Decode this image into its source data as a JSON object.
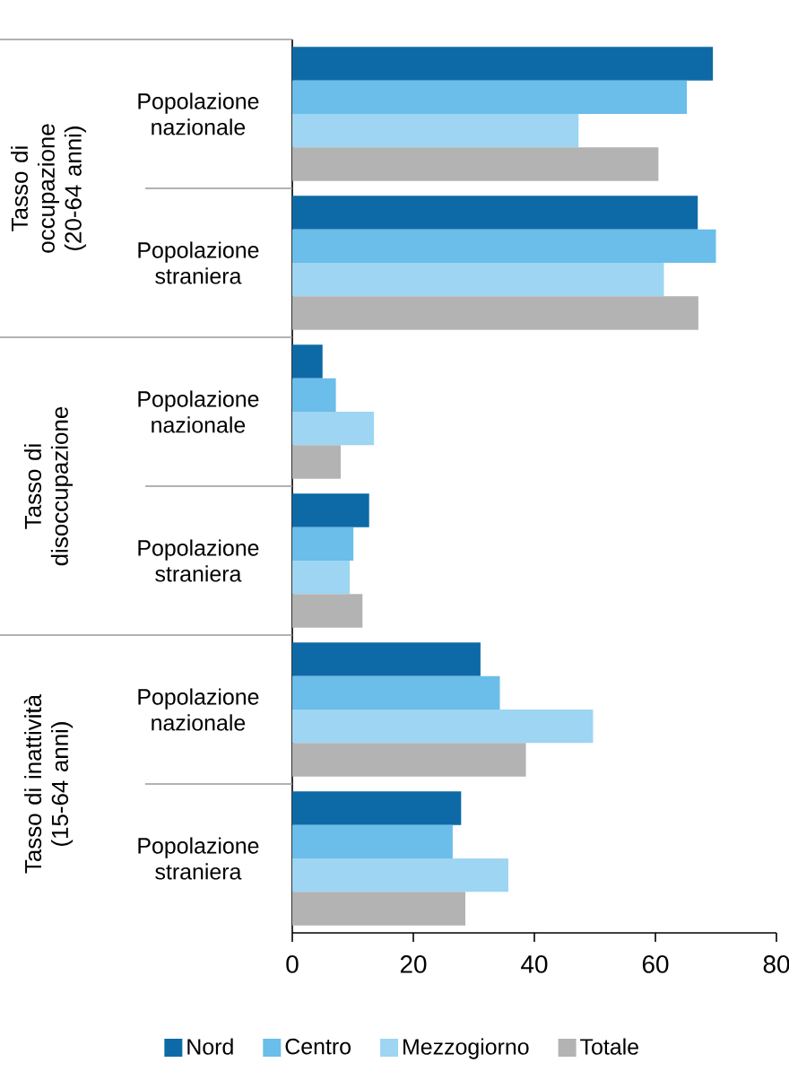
{
  "chart_data": {
    "type": "bar",
    "orientation": "horizontal",
    "categories": [
      "Popolazione nazionale",
      "Popolazione straniera",
      "Popolazione nazionale",
      "Popolazione straniera",
      "Popolazione nazionale",
      "Popolazione straniera"
    ],
    "series": [
      {
        "name": "Nord",
        "color": "#0e6aa6",
        "values": [
          69.5,
          67.0,
          5.0,
          12.7,
          31.1,
          27.9
        ]
      },
      {
        "name": "Centro",
        "color": "#6bbdea",
        "values": [
          65.2,
          70.0,
          7.2,
          10.1,
          34.3,
          26.5
        ]
      },
      {
        "name": "Mezzogiorno",
        "color": "#9dd5f3",
        "values": [
          47.3,
          61.4,
          13.5,
          9.5,
          49.7,
          35.7
        ]
      },
      {
        "name": "Totale",
        "color": "#b3b3b3",
        "values": [
          60.5,
          67.1,
          8.0,
          11.6,
          38.6,
          28.6
        ]
      }
    ],
    "xlim": [
      0,
      80
    ],
    "xticks": [
      0,
      20,
      40,
      60,
      80
    ],
    "legend": "bottom",
    "annotations": [
      "Tasso di occupazione (20-64 anni)",
      "Tasso di disoccupazione",
      "Tasso di inattività (15-64 anni)"
    ]
  }
}
